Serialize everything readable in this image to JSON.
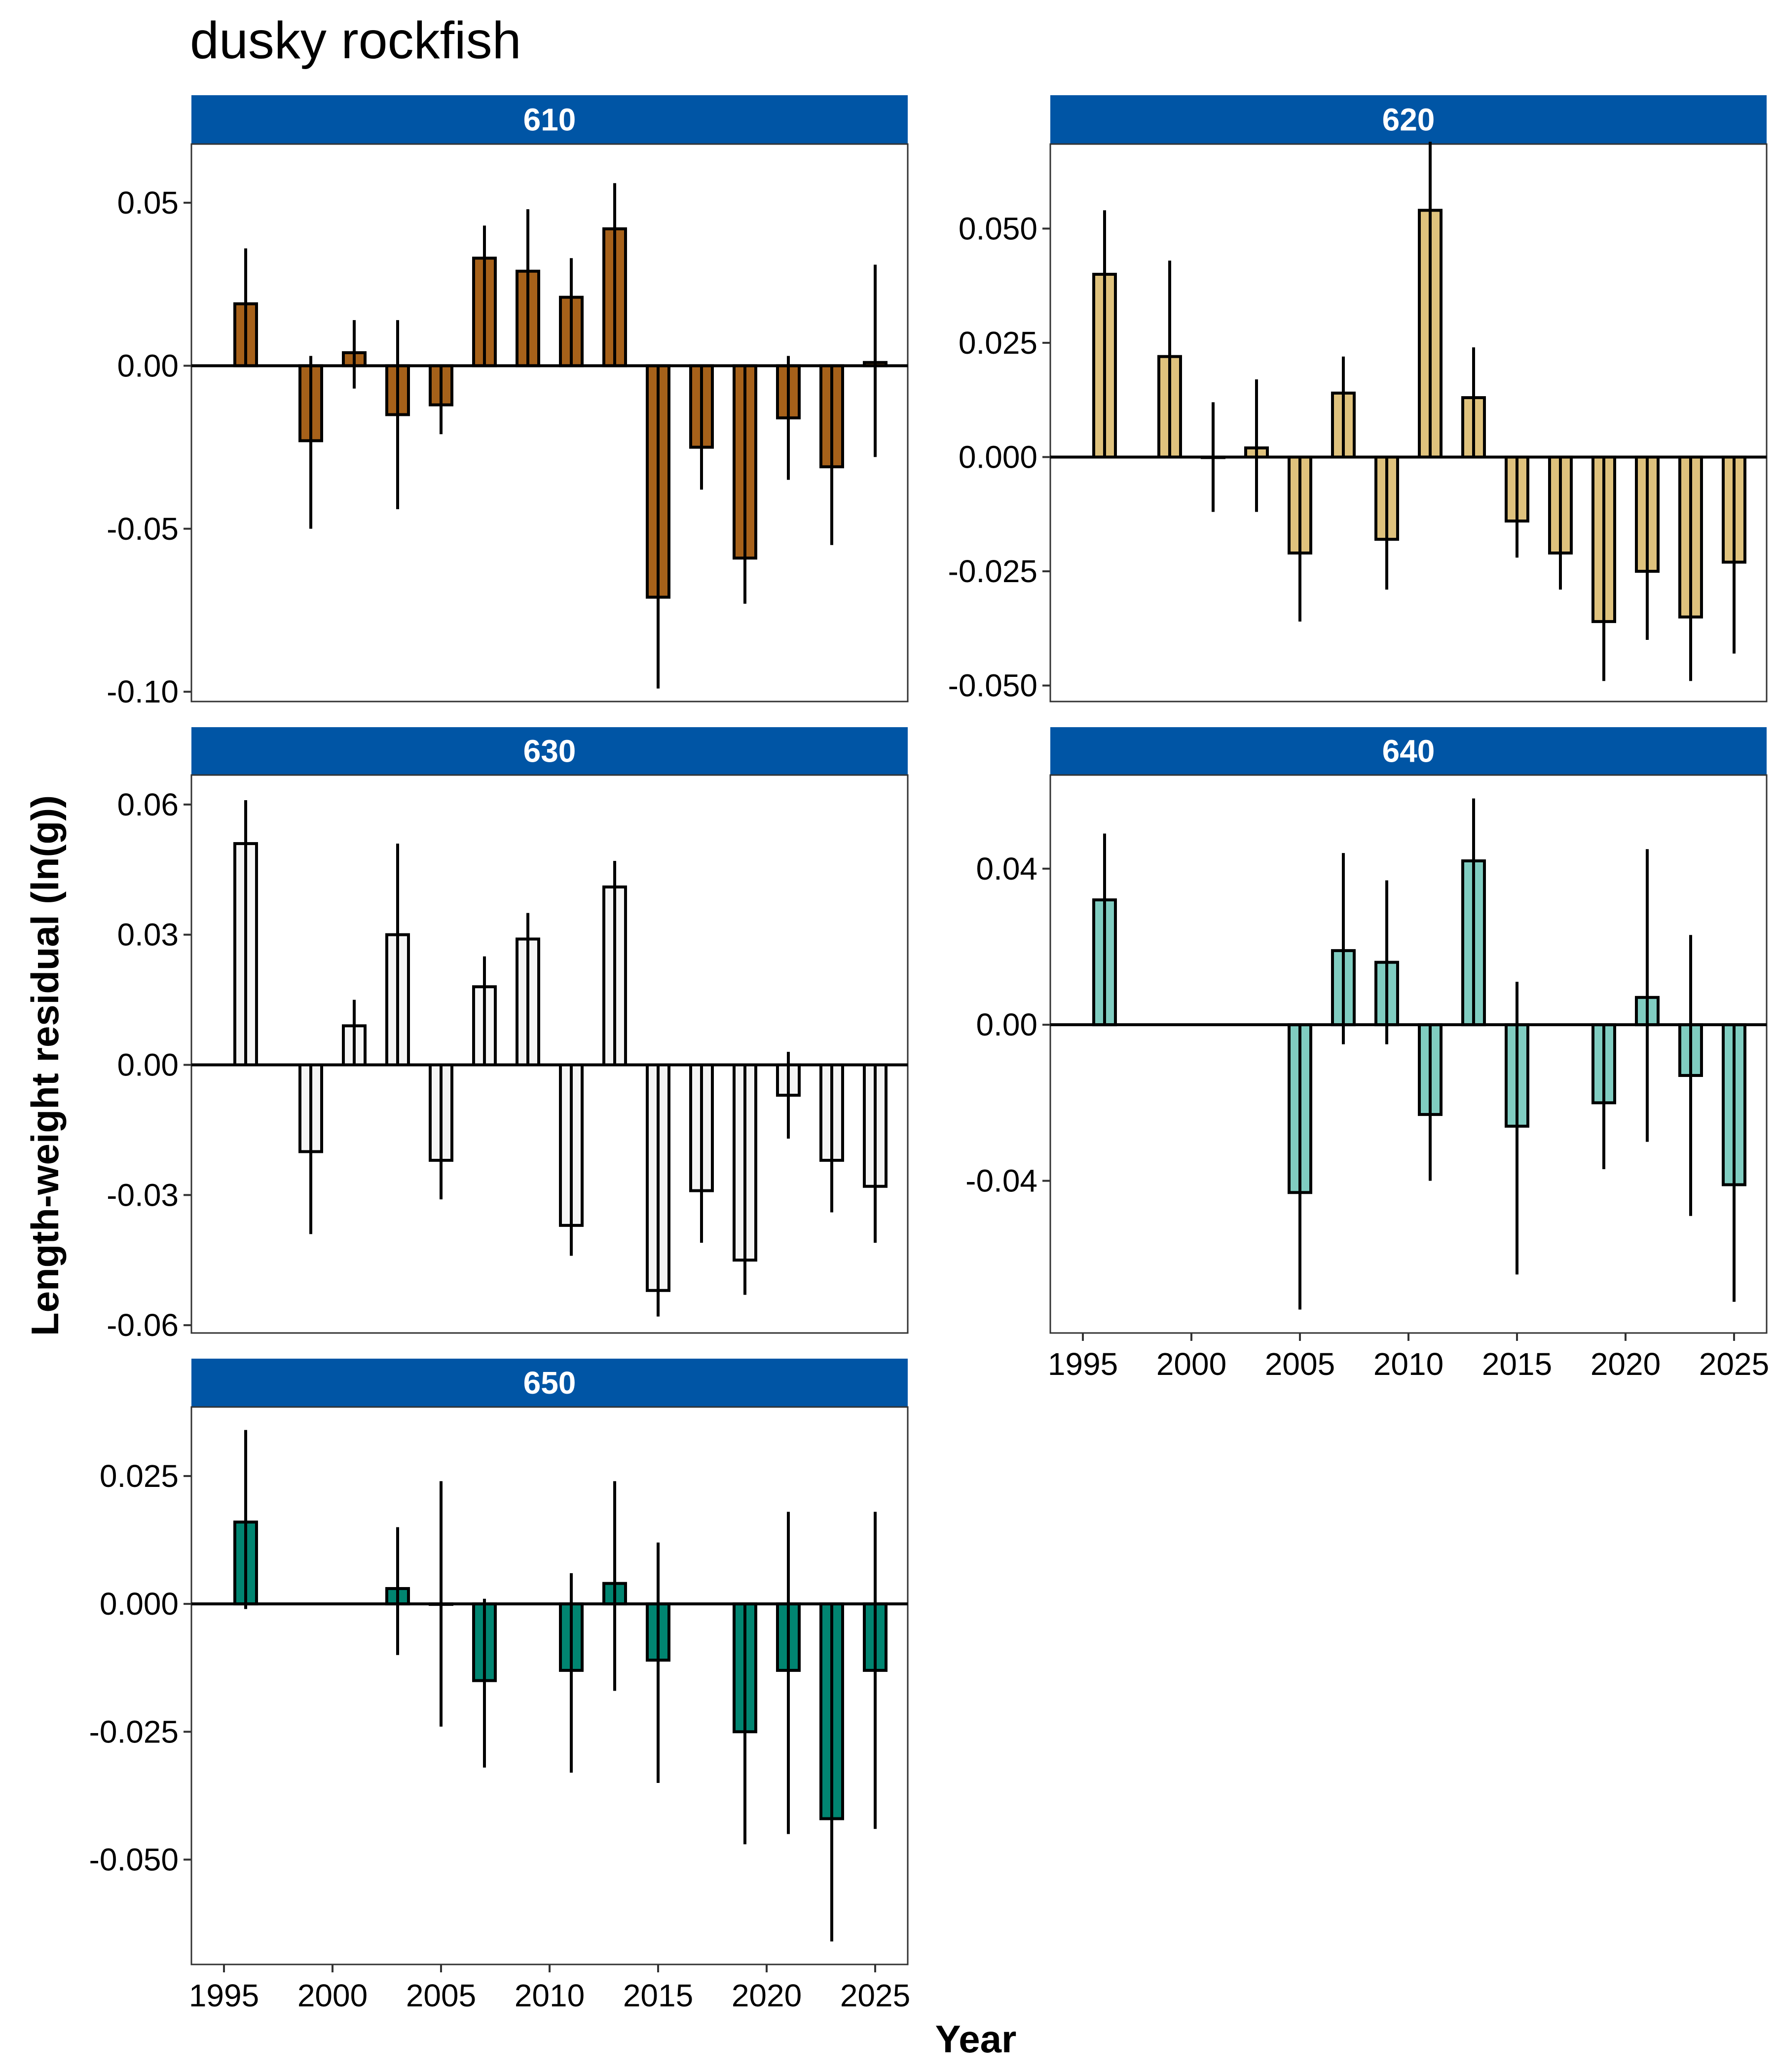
{
  "title": "dusky rockfish",
  "chart_data": {
    "type": "bar",
    "title": "dusky rockfish",
    "xlabel": "Year",
    "ylabel": "Length-weight residual (ln(g))",
    "x_ticks": [
      1995,
      2000,
      2005,
      2010,
      2015,
      2020,
      2025
    ],
    "grid": false,
    "panels": [
      {
        "name": "610",
        "color": "#a6611a",
        "ylim": [
          -0.103,
          0.068
        ],
        "y_ticks": [
          0.05,
          0.0,
          -0.05,
          -0.1
        ],
        "y_tick_labels": [
          "0.05",
          "0.00",
          "-0.05",
          "-0.10"
        ],
        "x": [
          1996,
          1999,
          2001,
          2003,
          2005,
          2007,
          2009,
          2011,
          2013,
          2015,
          2017,
          2019,
          2021,
          2023,
          2025
        ],
        "values": [
          0.019,
          -0.023,
          0.004,
          -0.015,
          -0.012,
          0.033,
          0.029,
          0.021,
          0.042,
          -0.071,
          -0.025,
          -0.059,
          -0.016,
          -0.031,
          0.001
        ],
        "lower": [
          0.0,
          -0.05,
          -0.007,
          -0.044,
          -0.021,
          0.0,
          0.0,
          0.0,
          0.0,
          -0.099,
          -0.038,
          -0.073,
          -0.035,
          -0.055,
          -0.028
        ],
        "upper": [
          0.036,
          0.003,
          0.014,
          0.014,
          0.0,
          0.043,
          0.048,
          0.033,
          0.056,
          0.0,
          0.0,
          0.0,
          0.003,
          0.0,
          0.031
        ]
      },
      {
        "name": "620",
        "color": "#dfc27d",
        "ylim": [
          -0.0535,
          0.0685
        ],
        "y_ticks": [
          0.05,
          0.025,
          0.0,
          -0.025,
          -0.05
        ],
        "y_tick_labels": [
          "0.050",
          "0.025",
          "0.000",
          "-0.025",
          "-0.050"
        ],
        "x": [
          1996,
          1999,
          2001,
          2003,
          2005,
          2007,
          2009,
          2011,
          2013,
          2015,
          2017,
          2019,
          2021,
          2023,
          2025
        ],
        "values": [
          0.04,
          0.022,
          0.0,
          0.002,
          -0.021,
          0.014,
          -0.018,
          0.054,
          0.013,
          -0.014,
          -0.021,
          -0.036,
          -0.025,
          -0.035,
          -0.023
        ],
        "lower": [
          0.0,
          0.0,
          -0.012,
          -0.012,
          -0.036,
          0.0,
          -0.029,
          0.0,
          0.0,
          -0.022,
          -0.029,
          -0.049,
          -0.04,
          -0.049,
          -0.043
        ],
        "upper": [
          0.054,
          0.043,
          0.012,
          0.017,
          0.0,
          0.022,
          0.0,
          0.069,
          0.024,
          0.0,
          0.0,
          0.0,
          0.0,
          0.0,
          0.0
        ]
      },
      {
        "name": "630",
        "color": "#f5f5f5",
        "ylim": [
          -0.0618,
          0.0668
        ],
        "y_ticks": [
          0.06,
          0.03,
          0.0,
          -0.03,
          -0.06
        ],
        "y_tick_labels": [
          "0.06",
          "0.03",
          "0.00",
          "-0.03",
          "-0.06"
        ],
        "x": [
          1996,
          1999,
          2001,
          2003,
          2005,
          2007,
          2009,
          2011,
          2013,
          2015,
          2017,
          2019,
          2021,
          2023,
          2025
        ],
        "values": [
          0.051,
          -0.02,
          0.009,
          0.03,
          -0.022,
          0.018,
          0.029,
          -0.037,
          0.041,
          -0.052,
          -0.029,
          -0.045,
          -0.007,
          -0.022,
          -0.028
        ],
        "lower": [
          0.0,
          -0.039,
          0.0,
          0.0,
          -0.031,
          0.0,
          0.0,
          -0.044,
          0.0,
          -0.058,
          -0.041,
          -0.053,
          -0.017,
          -0.034,
          -0.041
        ],
        "upper": [
          0.061,
          0.0,
          0.015,
          0.051,
          0.0,
          0.025,
          0.035,
          0.0,
          0.047,
          0.0,
          0.0,
          0.0,
          0.003,
          0.0,
          0.0
        ]
      },
      {
        "name": "640",
        "color": "#80cdc1",
        "ylim": [
          -0.079,
          0.064
        ],
        "y_ticks": [
          0.04,
          0.0,
          -0.04
        ],
        "y_tick_labels": [
          "0.04",
          "0.00",
          "-0.04"
        ],
        "x": [
          1996,
          2005,
          2007,
          2009,
          2011,
          2013,
          2015,
          2019,
          2021,
          2023,
          2025
        ],
        "values": [
          0.032,
          -0.043,
          0.019,
          0.016,
          -0.023,
          0.042,
          -0.026,
          -0.02,
          0.007,
          -0.013,
          -0.041
        ],
        "lower": [
          0.0,
          -0.073,
          -0.005,
          -0.005,
          -0.04,
          0.0,
          -0.064,
          -0.037,
          -0.03,
          -0.049,
          -0.071
        ],
        "upper": [
          0.049,
          0.0,
          0.044,
          0.037,
          0.0,
          0.058,
          0.011,
          0.0,
          0.045,
          0.023,
          0.0
        ]
      },
      {
        "name": "650",
        "color": "#018571",
        "ylim": [
          -0.0705,
          0.0385
        ],
        "y_ticks": [
          0.025,
          0.0,
          -0.025,
          -0.05
        ],
        "y_tick_labels": [
          "0.025",
          "0.000",
          "-0.025",
          "-0.050"
        ],
        "x": [
          1996,
          2003,
          2005,
          2007,
          2011,
          2013,
          2015,
          2019,
          2021,
          2023,
          2025
        ],
        "values": [
          0.016,
          0.003,
          0.0,
          -0.015,
          -0.013,
          0.004,
          -0.011,
          -0.025,
          -0.013,
          -0.042,
          -0.013
        ],
        "lower": [
          -0.001,
          -0.01,
          -0.024,
          -0.032,
          -0.033,
          -0.017,
          -0.035,
          -0.047,
          -0.045,
          -0.066,
          -0.044
        ],
        "upper": [
          0.034,
          0.015,
          0.024,
          0.001,
          0.006,
          0.024,
          0.012,
          0.0,
          0.018,
          0.0,
          0.018
        ]
      }
    ]
  }
}
